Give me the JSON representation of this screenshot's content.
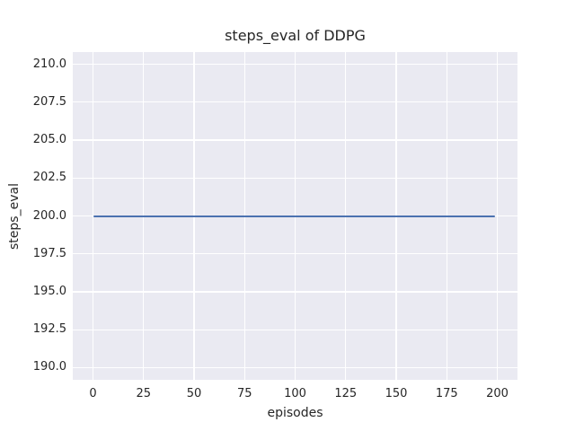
{
  "style": {
    "figure_background": "#FFFFFF",
    "plot_background": "#EAEAF2",
    "grid_color": "#FFFFFF",
    "text_color": "#262626"
  },
  "chart_data": {
    "type": "line",
    "title": "steps_eval of DDPG",
    "xlabel": "episodes",
    "ylabel": "steps_eval",
    "xlim": [
      -10,
      210
    ],
    "ylim": [
      189.2,
      210.8
    ],
    "x_ticks": [
      0,
      25,
      50,
      75,
      100,
      125,
      150,
      175,
      200
    ],
    "x_tick_labels": [
      "0",
      "25",
      "50",
      "75",
      "100",
      "125",
      "150",
      "175",
      "200"
    ],
    "y_ticks": [
      190.0,
      192.5,
      195.0,
      197.5,
      200.0,
      202.5,
      205.0,
      207.5,
      210.0
    ],
    "y_tick_labels": [
      "190.0",
      "192.5",
      "195.0",
      "197.5",
      "200.0",
      "202.5",
      "205.0",
      "207.5",
      "210.0"
    ],
    "grid": true,
    "legend": null,
    "series": [
      {
        "name": "DDPG steps_eval",
        "color": "#4C72B0",
        "x_start": 0,
        "x_end": 199,
        "constant_y": 200,
        "description": "constant value 200 for every evaluated episode from 0 to 199"
      }
    ]
  }
}
